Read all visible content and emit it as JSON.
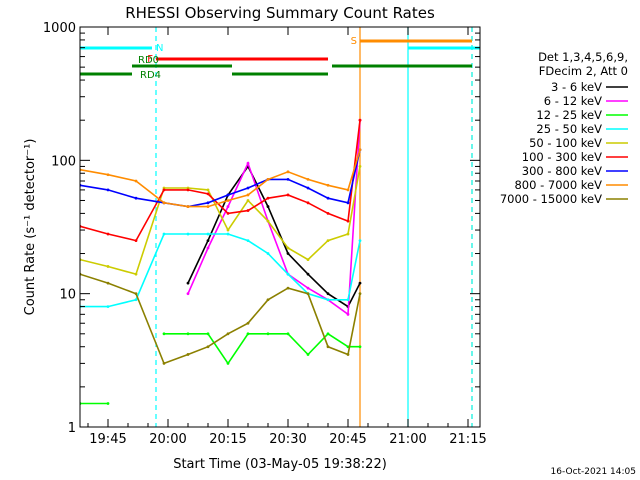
{
  "chart_data": {
    "type": "line",
    "title": "RHESSI Observing Summary Count Rates",
    "xlabel": "Start Time (03-May-05 19:38:22)",
    "ylabel": "Count Rate (s⁻¹ detector⁻¹)",
    "yscale": "log",
    "ylim": [
      1,
      1000
    ],
    "xlim": [
      "19:38",
      "21:18"
    ],
    "grid": false,
    "legend_position": "right",
    "x_ticks": [
      "19:45",
      "20:00",
      "20:15",
      "20:30",
      "20:45",
      "21:00",
      "21:15"
    ],
    "y_ticks": [
      "1",
      "10",
      "100",
      "1000"
    ],
    "detector_info": [
      "Det 1,3,4,5,6,9,",
      "FDecim 2, Att 0"
    ],
    "x": [
      "19:38",
      "19:45",
      "19:52",
      "19:59",
      "20:05",
      "20:10",
      "20:15",
      "20:20",
      "20:25",
      "20:30",
      "20:35",
      "20:40",
      "20:45",
      "20:48"
    ],
    "series": [
      {
        "name": "3 - 6 keV",
        "color": "#000000",
        "values": [
          null,
          null,
          null,
          null,
          12,
          25,
          55,
          90,
          45,
          20,
          14,
          10,
          8,
          12
        ]
      },
      {
        "name": "6 - 12 keV",
        "color": "#ff00ff",
        "values": [
          null,
          null,
          null,
          null,
          10,
          22,
          45,
          95,
          35,
          14,
          11,
          9,
          7,
          200
        ]
      },
      {
        "name": "12 - 25 keV",
        "color": "#00ff00",
        "values": [
          1.5,
          1.5,
          null,
          5,
          5,
          5,
          3,
          5,
          5,
          5,
          3.5,
          5,
          4,
          4
        ]
      },
      {
        "name": "25 - 50 keV",
        "color": "#00ffff",
        "values": [
          8,
          8,
          9,
          28,
          28,
          28,
          28,
          25,
          20,
          14,
          10,
          9,
          9,
          25
        ]
      },
      {
        "name": "50 - 100 keV",
        "color": "#cccc00",
        "values": [
          18,
          16,
          14,
          62,
          62,
          60,
          30,
          50,
          35,
          22,
          18,
          25,
          28,
          90
        ]
      },
      {
        "name": "100 - 300 keV",
        "color": "#ff0000",
        "values": [
          32,
          28,
          25,
          60,
          60,
          56,
          40,
          42,
          52,
          55,
          48,
          40,
          35,
          200
        ]
      },
      {
        "name": "300 - 800 keV",
        "color": "#0000ff",
        "values": [
          65,
          60,
          52,
          48,
          45,
          48,
          55,
          62,
          72,
          72,
          62,
          52,
          48,
          120
        ]
      },
      {
        "name": "800 - 7000 keV",
        "color": "#ff8c00",
        "values": [
          85,
          78,
          70,
          48,
          45,
          45,
          50,
          55,
          72,
          82,
          72,
          65,
          60,
          120
        ]
      },
      {
        "name": "7000 - 15000 keV",
        "color": "#8b8000",
        "values": [
          14,
          12,
          10,
          3,
          3.5,
          4,
          5,
          6,
          9,
          11,
          10,
          4,
          3.5,
          10
        ]
      }
    ],
    "state_bars": [
      {
        "label": "N",
        "color": "#00ffff",
        "segments": [
          [
            "19:38",
            "19:56"
          ],
          [
            "21:00",
            "21:18"
          ]
        ]
      },
      {
        "label": "F",
        "color": "#ff0000",
        "segments": [
          [
            "19:57",
            "20:40"
          ]
        ]
      },
      {
        "label": "S",
        "color": "#ff8c00",
        "segments": [
          [
            "20:48",
            "21:16"
          ]
        ]
      },
      {
        "label": "RD0",
        "color": "#008000",
        "segments": [
          [
            "19:51",
            "20:16"
          ],
          [
            "20:41",
            "21:16"
          ]
        ]
      },
      {
        "label": "RD4",
        "color": "#008000",
        "segments": [
          [
            "19:38",
            "19:51"
          ],
          [
            "20:16",
            "20:40"
          ]
        ]
      }
    ],
    "vertical_markers": [
      {
        "time": "19:57",
        "color": "#00ffff",
        "style": "dashed"
      },
      {
        "time": "20:48",
        "color": "#ff8c00",
        "style": "solid"
      },
      {
        "time": "21:00",
        "color": "#00ffff",
        "style": "solid"
      },
      {
        "time": "21:16",
        "color": "#ff8c00",
        "style": "dashed"
      },
      {
        "time": "21:16",
        "color": "#00ffff",
        "style": "dashed"
      }
    ]
  },
  "timestamp": "16-Oct-2021 14:05"
}
